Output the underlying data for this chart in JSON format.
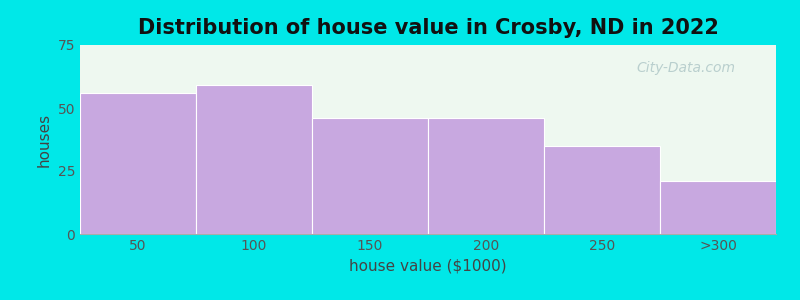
{
  "title": "Distribution of house value in Crosby, ND in 2022",
  "xlabel": "house value ($1000)",
  "ylabel": "houses",
  "categories": [
    "50",
    "100",
    "150",
    "200",
    "250",
    ">300"
  ],
  "values": [
    56,
    59,
    46,
    46,
    35,
    21
  ],
  "bar_color": "#c8a8e0",
  "bar_edge_color": "#ffffff",
  "ylim": [
    0,
    75
  ],
  "yticks": [
    0,
    25,
    50,
    75
  ],
  "background_color": "#00e8e8",
  "plot_bg_color": "#eef8f0",
  "title_fontsize": 15,
  "axis_label_fontsize": 11,
  "tick_fontsize": 10,
  "bar_width": 1.0,
  "watermark": "City-Data.com",
  "watermark_color": "#b0c8c8",
  "watermark_fontsize": 10
}
